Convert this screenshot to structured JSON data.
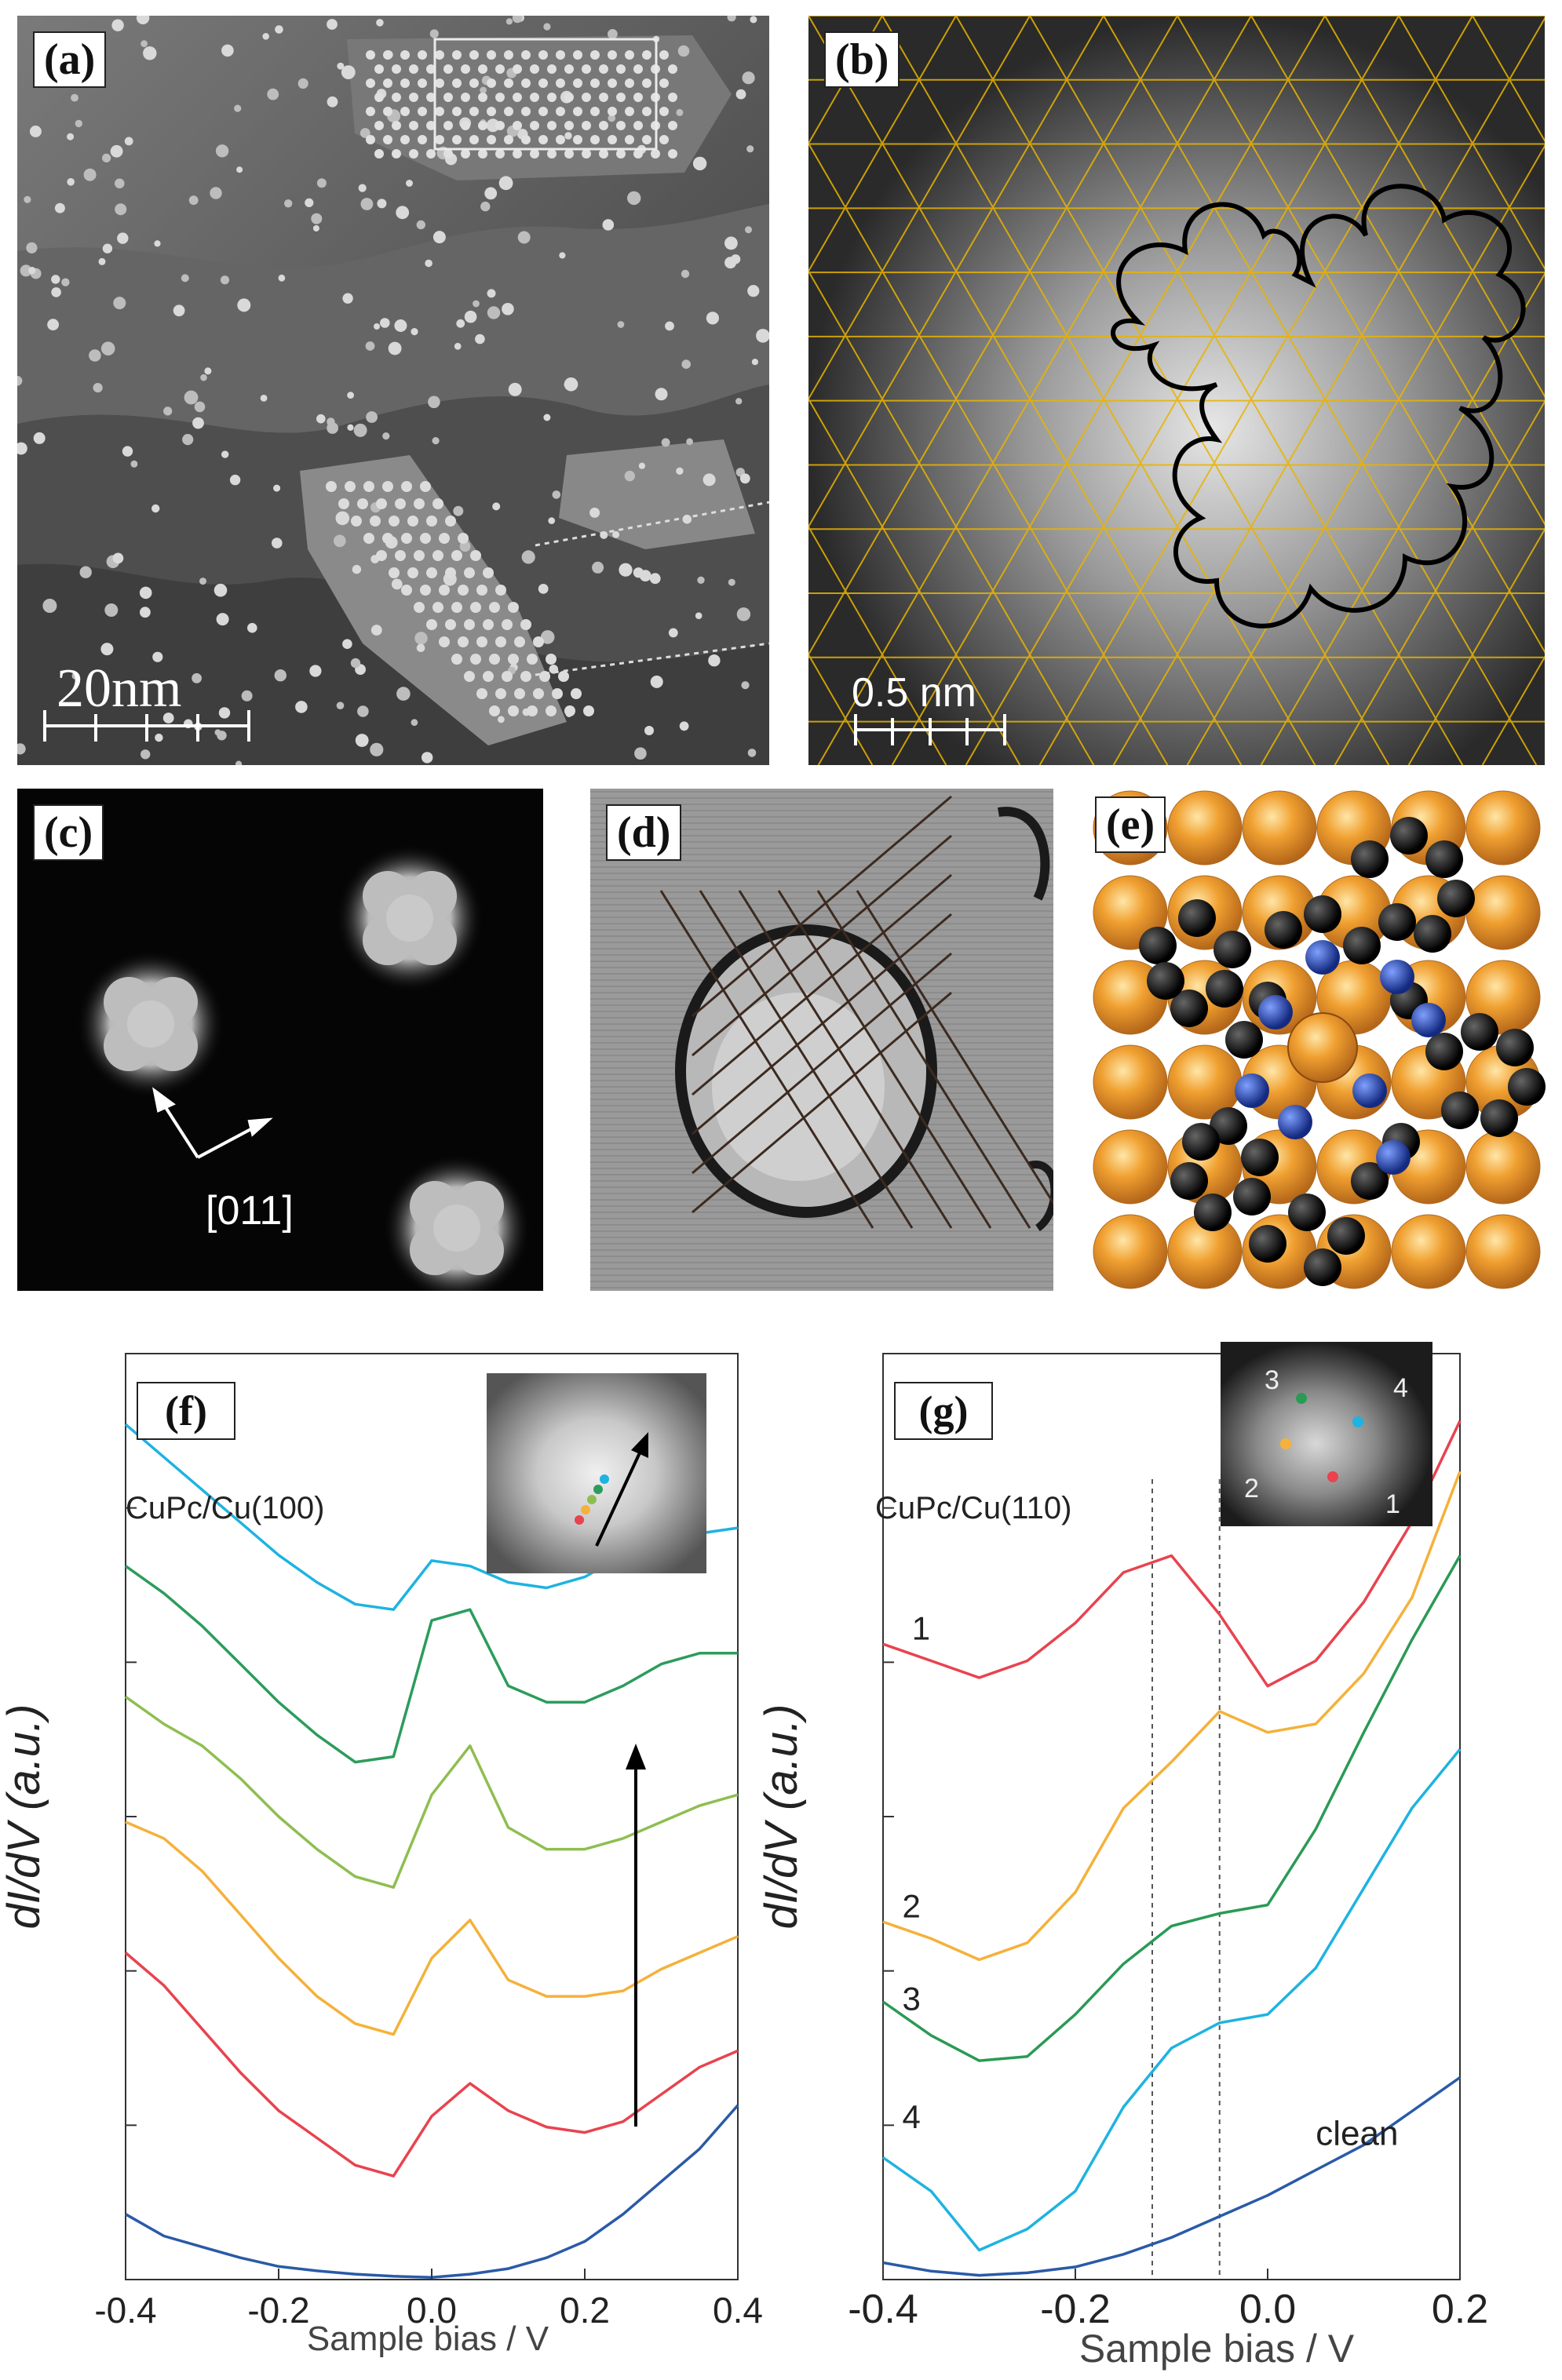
{
  "figure": {
    "panels": {
      "a": {
        "label": "(a)",
        "scale_bar": "20nm"
      },
      "b": {
        "label": "(b)",
        "scale_bar": "0.5 nm"
      },
      "c": {
        "label": "(c)",
        "direction": "[011]"
      },
      "d": {
        "label": "(d)"
      },
      "e": {
        "label": "(e)"
      }
    },
    "colors": {
      "lattice": "#e8b400",
      "copper_atom": "#f0a030",
      "carbon_atom": "#111111",
      "nitrogen_atom": "#1f3fa8"
    }
  },
  "chart_data": [
    {
      "panel": "(f)",
      "type": "line",
      "title": "",
      "annotation": "CuPc/Cu(100)",
      "xlabel": "Sample bias / V",
      "ylabel": "dI/dV (a.u.)",
      "xlim": [
        -0.4,
        0.4
      ],
      "xticks": [
        "-0.4",
        "-0.2",
        "0.0",
        "0.2",
        "0.4"
      ],
      "grid": false,
      "legend": "none",
      "inset": "STM image with colored measurement points and arrow",
      "series": [
        {
          "color": "#2a5aa8",
          "x": [
            -0.4,
            -0.35,
            -0.3,
            -0.25,
            -0.2,
            -0.15,
            -0.1,
            -0.05,
            0.0,
            0.05,
            0.1,
            0.15,
            0.2,
            0.25,
            0.3,
            0.35,
            0.4
          ],
          "y": [
            0.6,
            0.4,
            0.3,
            0.2,
            0.12,
            0.08,
            0.05,
            0.03,
            0.02,
            0.05,
            0.1,
            0.2,
            0.35,
            0.6,
            0.9,
            1.2,
            1.6
          ]
        },
        {
          "color": "#e8434f",
          "x": [
            -0.4,
            -0.35,
            -0.3,
            -0.25,
            -0.2,
            -0.15,
            -0.1,
            -0.05,
            0.0,
            0.05,
            0.1,
            0.15,
            0.2,
            0.25,
            0.3,
            0.35,
            0.4
          ],
          "y": [
            3.0,
            2.7,
            2.3,
            1.9,
            1.55,
            1.3,
            1.05,
            0.95,
            1.5,
            1.8,
            1.55,
            1.4,
            1.35,
            1.45,
            1.7,
            1.95,
            2.1
          ]
        },
        {
          "color": "#f5b13a",
          "x": [
            -0.4,
            -0.35,
            -0.3,
            -0.25,
            -0.2,
            -0.15,
            -0.1,
            -0.05,
            0.0,
            0.05,
            0.1,
            0.15,
            0.2,
            0.25,
            0.3,
            0.35,
            0.4
          ],
          "y": [
            4.2,
            4.05,
            3.75,
            3.35,
            2.95,
            2.6,
            2.35,
            2.25,
            2.95,
            3.3,
            2.75,
            2.6,
            2.6,
            2.65,
            2.85,
            3.0,
            3.15
          ]
        },
        {
          "color": "#8fbe50",
          "x": [
            -0.4,
            -0.35,
            -0.3,
            -0.25,
            -0.2,
            -0.15,
            -0.1,
            -0.05,
            0.0,
            0.05,
            0.1,
            0.15,
            0.2,
            0.25,
            0.3,
            0.35,
            0.4
          ],
          "y": [
            5.35,
            5.1,
            4.9,
            4.6,
            4.25,
            3.95,
            3.7,
            3.6,
            4.45,
            4.9,
            4.15,
            3.95,
            3.95,
            4.05,
            4.2,
            4.35,
            4.45
          ]
        },
        {
          "color": "#2c9c5c",
          "x": [
            -0.4,
            -0.35,
            -0.3,
            -0.25,
            -0.2,
            -0.15,
            -0.1,
            -0.05,
            0.0,
            0.05,
            0.1,
            0.15,
            0.2,
            0.25,
            0.3,
            0.35,
            0.4
          ],
          "y": [
            6.55,
            6.3,
            6.0,
            5.65,
            5.3,
            5.0,
            4.75,
            4.8,
            6.05,
            6.15,
            5.45,
            5.3,
            5.3,
            5.45,
            5.65,
            5.75,
            5.75
          ]
        },
        {
          "color": "#1eb3e0",
          "x": [
            -0.4,
            -0.35,
            -0.3,
            -0.25,
            -0.2,
            -0.15,
            -0.1,
            -0.05,
            0.0,
            0.05,
            0.1,
            0.15,
            0.2,
            0.25,
            0.3,
            0.35,
            0.4
          ],
          "y": [
            7.85,
            7.55,
            7.25,
            6.95,
            6.65,
            6.4,
            6.2,
            6.15,
            6.6,
            6.55,
            6.4,
            6.35,
            6.45,
            6.65,
            6.8,
            6.85,
            6.9
          ]
        }
      ]
    },
    {
      "panel": "(g)",
      "type": "line",
      "title": "",
      "annotation": "CuPc/Cu(110)",
      "xlabel": "Sample bias / V",
      "ylabel": "dI/dV (a.u.)",
      "xlim": [
        -0.4,
        0.2
      ],
      "xticks": [
        "-0.4",
        "-0.2",
        "0.0",
        "0.2"
      ],
      "grid": false,
      "legend": "none",
      "vlines": [
        -0.12,
        -0.05
      ],
      "inset_labels": [
        "3",
        "4",
        "2",
        "1"
      ],
      "curve_labels": [
        "1",
        "2",
        "3",
        "4",
        "clean"
      ],
      "series": [
        {
          "label": "clean",
          "color": "#2a5aa8",
          "x": [
            -0.4,
            -0.35,
            -0.3,
            -0.25,
            -0.2,
            -0.15,
            -0.1,
            -0.05,
            0.0,
            0.05,
            0.1,
            0.15,
            0.2
          ],
          "y": [
            0.2,
            0.1,
            0.05,
            0.08,
            0.15,
            0.3,
            0.5,
            0.75,
            1.0,
            1.3,
            1.6,
            2.0,
            2.4
          ]
        },
        {
          "label": "4",
          "color": "#1eb3e0",
          "x": [
            -0.4,
            -0.35,
            -0.3,
            -0.25,
            -0.2,
            -0.15,
            -0.1,
            -0.05,
            0.0,
            0.05,
            0.1,
            0.15,
            0.2
          ],
          "y": [
            1.45,
            1.05,
            0.35,
            0.6,
            1.05,
            2.05,
            2.75,
            3.05,
            3.15,
            3.7,
            4.65,
            5.6,
            6.3
          ]
        },
        {
          "label": "3",
          "color": "#2a9a55",
          "x": [
            -0.4,
            -0.35,
            -0.3,
            -0.25,
            -0.2,
            -0.15,
            -0.1,
            -0.05,
            0.0,
            0.05,
            0.1,
            0.15,
            0.2
          ],
          "y": [
            3.3,
            2.9,
            2.6,
            2.65,
            3.15,
            3.75,
            4.2,
            4.35,
            4.45,
            5.35,
            6.5,
            7.6,
            8.6
          ]
        },
        {
          "label": "2",
          "color": "#f5b13a",
          "x": [
            -0.4,
            -0.35,
            -0.3,
            -0.25,
            -0.2,
            -0.15,
            -0.1,
            -0.05,
            0.0,
            0.05,
            0.1,
            0.15,
            0.2
          ],
          "y": [
            4.25,
            4.05,
            3.8,
            4.0,
            4.6,
            5.6,
            6.15,
            6.75,
            6.5,
            6.6,
            7.2,
            8.1,
            9.6
          ]
        },
        {
          "label": "1",
          "color": "#e8434f",
          "x": [
            -0.4,
            -0.35,
            -0.3,
            -0.25,
            -0.2,
            -0.15,
            -0.1,
            -0.05,
            0.0,
            0.05,
            0.1,
            0.15,
            0.2
          ],
          "y": [
            7.55,
            7.35,
            7.15,
            7.35,
            7.8,
            8.4,
            8.6,
            7.9,
            7.05,
            7.35,
            8.05,
            9.0,
            10.2
          ]
        }
      ]
    }
  ]
}
